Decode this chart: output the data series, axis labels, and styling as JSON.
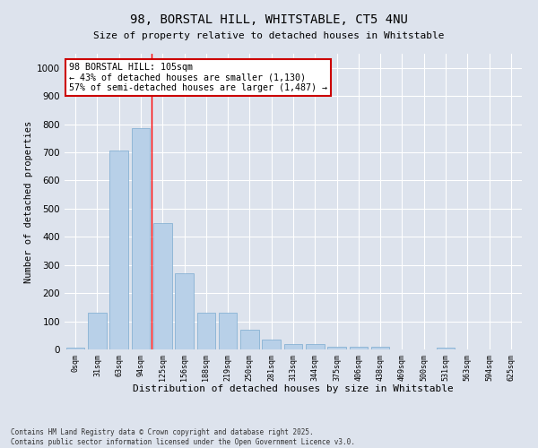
{
  "title_line1": "98, BORSTAL HILL, WHITSTABLE, CT5 4NU",
  "title_line2": "Size of property relative to detached houses in Whitstable",
  "xlabel": "Distribution of detached houses by size in Whitstable",
  "ylabel": "Number of detached properties",
  "bar_color": "#b8d0e8",
  "bar_edge_color": "#7aaad0",
  "bg_color": "#dde3ed",
  "grid_color": "#ffffff",
  "categories": [
    "0sqm",
    "31sqm",
    "63sqm",
    "94sqm",
    "125sqm",
    "156sqm",
    "188sqm",
    "219sqm",
    "250sqm",
    "281sqm",
    "313sqm",
    "344sqm",
    "375sqm",
    "406sqm",
    "438sqm",
    "469sqm",
    "500sqm",
    "531sqm",
    "563sqm",
    "594sqm",
    "625sqm"
  ],
  "values": [
    5,
    130,
    705,
    785,
    450,
    270,
    130,
    130,
    70,
    35,
    20,
    20,
    10,
    10,
    10,
    0,
    0,
    5,
    0,
    0,
    0
  ],
  "ylim": [
    0,
    1050
  ],
  "yticks": [
    0,
    100,
    200,
    300,
    400,
    500,
    600,
    700,
    800,
    900,
    1000
  ],
  "vline_x": 3.5,
  "annotation_text": "98 BORSTAL HILL: 105sqm\n← 43% of detached houses are smaller (1,130)\n57% of semi-detached houses are larger (1,487) →",
  "annotation_box_color": "#ffffff",
  "annotation_box_edge": "#cc0000",
  "footnote": "Contains HM Land Registry data © Crown copyright and database right 2025.\nContains public sector information licensed under the Open Government Licence v3.0."
}
